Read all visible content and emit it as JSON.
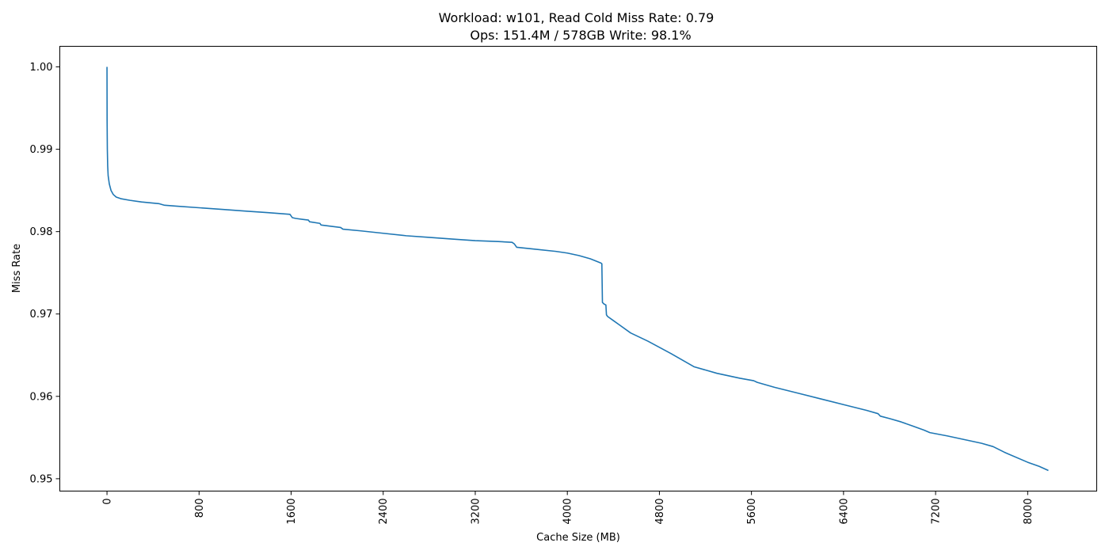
{
  "chart_data": {
    "type": "line",
    "title_line1": "Workload: w101, Read Cold Miss Rate: 0.79",
    "title_line2": "Ops: 151.4M / 578GB Write: 98.1%",
    "xlabel": "Cache Size (MB)",
    "ylabel": "Miss Rate",
    "xlim": [
      -410,
      8600
    ],
    "ylim": [
      0.9485,
      1.0025
    ],
    "x_ticks": [
      0,
      800,
      1600,
      2400,
      3200,
      4000,
      4800,
      5600,
      6400,
      7200,
      8000
    ],
    "x_tick_labels": [
      "0",
      "800",
      "1600",
      "2400",
      "3200",
      "4000",
      "4800",
      "5600",
      "6400",
      "7200",
      "8000"
    ],
    "y_ticks": [
      0.95,
      0.96,
      0.97,
      0.98,
      0.99,
      1.0
    ],
    "y_tick_labels": [
      "0.95",
      "0.96",
      "0.97",
      "0.98",
      "0.99",
      "1.00"
    ],
    "grid": false,
    "series": [
      {
        "color": "#1f77b4",
        "x": [
          0,
          1,
          3,
          6,
          10,
          20,
          35,
          55,
          80,
          120,
          200,
          300,
          450,
          500,
          600,
          800,
          1000,
          1200,
          1400,
          1590,
          1610,
          1640,
          1750,
          1760,
          1850,
          1860,
          2030,
          2050,
          2200,
          2400,
          2600,
          2800,
          3000,
          3200,
          3400,
          3520,
          3540,
          3560,
          3700,
          3900,
          4000,
          4100,
          4200,
          4290,
          4300,
          4305,
          4320,
          4335,
          4340,
          4350,
          4400,
          4450,
          4550,
          4700,
          4900,
          5100,
          5200,
          5300,
          5500,
          5620,
          5650,
          5800,
          6000,
          6200,
          6400,
          6600,
          6700,
          6720,
          6800,
          6900,
          7000,
          7100,
          7150,
          7300,
          7500,
          7600,
          7700,
          7800,
          8000,
          8100,
          8180
        ],
        "y": [
          1.0,
          0.9935,
          0.99,
          0.988,
          0.9868,
          0.9858,
          0.985,
          0.9845,
          0.9842,
          0.984,
          0.9838,
          0.9836,
          0.9834,
          0.9832,
          0.9831,
          0.9829,
          0.9827,
          0.9825,
          0.9823,
          0.9821,
          0.9817,
          0.9816,
          0.9814,
          0.9812,
          0.981,
          0.9808,
          0.9805,
          0.9803,
          0.9801,
          0.9798,
          0.9795,
          0.9793,
          0.9791,
          0.9789,
          0.9788,
          0.9787,
          0.9785,
          0.9781,
          0.9779,
          0.9776,
          0.9774,
          0.9771,
          0.9767,
          0.9762,
          0.9761,
          0.9714,
          0.9712,
          0.9711,
          0.9699,
          0.9697,
          0.9692,
          0.9687,
          0.9677,
          0.9667,
          0.9652,
          0.9636,
          0.9632,
          0.9628,
          0.9622,
          0.9619,
          0.9617,
          0.9611,
          0.9604,
          0.9597,
          0.959,
          0.9583,
          0.9579,
          0.9576,
          0.9573,
          0.9569,
          0.9564,
          0.9559,
          0.9556,
          0.9552,
          0.9546,
          0.9543,
          0.9539,
          0.9532,
          0.952,
          0.9515,
          0.951
        ]
      }
    ]
  }
}
